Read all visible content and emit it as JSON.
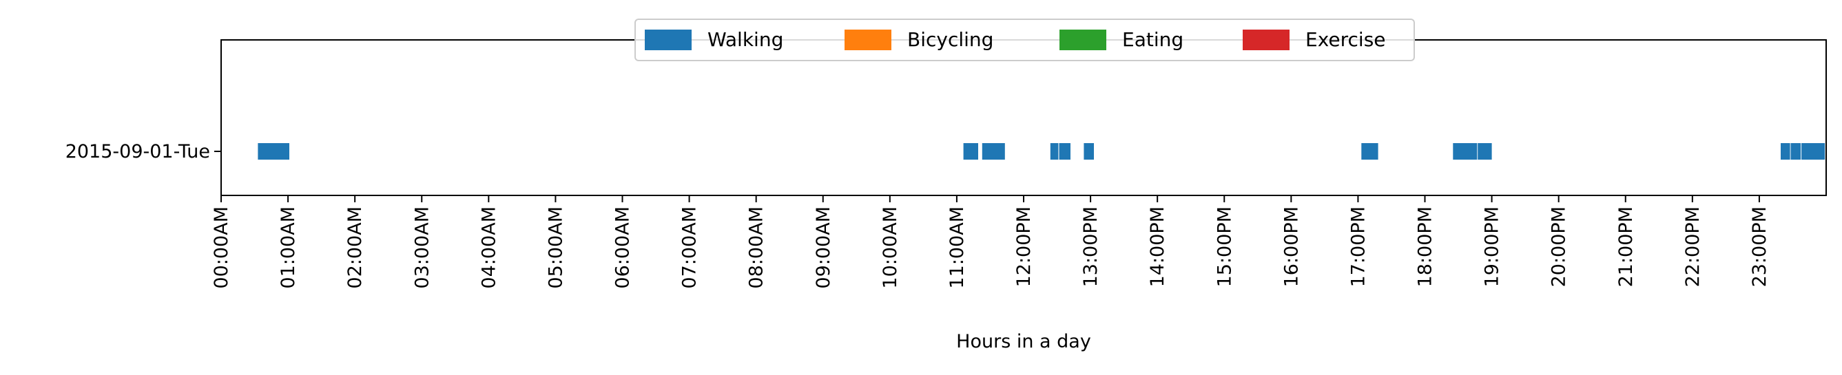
{
  "chart_data": {
    "type": "broken_barh",
    "title": "",
    "xlabel": "Hours in a day",
    "ylabel": "",
    "xlim": [
      0,
      24
    ],
    "x_unit": "hours",
    "grid": false,
    "legend_placement": "top-center",
    "categories": [
      "2015-09-01-Tue"
    ],
    "x_ticks": [
      {
        "value": 0,
        "label": "00:00AM"
      },
      {
        "value": 1,
        "label": "01:00AM"
      },
      {
        "value": 2,
        "label": "02:00AM"
      },
      {
        "value": 3,
        "label": "03:00AM"
      },
      {
        "value": 4,
        "label": "04:00AM"
      },
      {
        "value": 5,
        "label": "05:00AM"
      },
      {
        "value": 6,
        "label": "06:00AM"
      },
      {
        "value": 7,
        "label": "07:00AM"
      },
      {
        "value": 8,
        "label": "08:00AM"
      },
      {
        "value": 9,
        "label": "09:00AM"
      },
      {
        "value": 10,
        "label": "10:00AM"
      },
      {
        "value": 11,
        "label": "11:00AM"
      },
      {
        "value": 12,
        "label": "12:00PM"
      },
      {
        "value": 13,
        "label": "13:00PM"
      },
      {
        "value": 14,
        "label": "14:00PM"
      },
      {
        "value": 15,
        "label": "15:00PM"
      },
      {
        "value": 16,
        "label": "16:00PM"
      },
      {
        "value": 17,
        "label": "17:00PM"
      },
      {
        "value": 18,
        "label": "18:00PM"
      },
      {
        "value": 19,
        "label": "19:00PM"
      },
      {
        "value": 20,
        "label": "20:00PM"
      },
      {
        "value": 21,
        "label": "21:00PM"
      },
      {
        "value": 22,
        "label": "22:00PM"
      },
      {
        "value": 23,
        "label": "23:00PM"
      }
    ],
    "series": [
      {
        "name": "Walking",
        "color": "#1f77b4",
        "intervals": [
          {
            "category": "2015-09-01-Tue",
            "start": 0.55,
            "end": 1.02
          },
          {
            "category": "2015-09-01-Tue",
            "start": 11.1,
            "end": 11.32
          },
          {
            "category": "2015-09-01-Tue",
            "start": 11.38,
            "end": 11.72
          },
          {
            "category": "2015-09-01-Tue",
            "start": 12.4,
            "end": 12.52
          },
          {
            "category": "2015-09-01-Tue",
            "start": 12.53,
            "end": 12.7
          },
          {
            "category": "2015-09-01-Tue",
            "start": 12.9,
            "end": 13.05
          },
          {
            "category": "2015-09-01-Tue",
            "start": 17.05,
            "end": 17.3
          },
          {
            "category": "2015-09-01-Tue",
            "start": 18.42,
            "end": 18.78
          },
          {
            "category": "2015-09-01-Tue",
            "start": 18.79,
            "end": 19.0
          },
          {
            "category": "2015-09-01-Tue",
            "start": 23.32,
            "end": 23.46
          },
          {
            "category": "2015-09-01-Tue",
            "start": 23.47,
            "end": 23.62
          },
          {
            "category": "2015-09-01-Tue",
            "start": 23.63,
            "end": 23.98
          }
        ]
      },
      {
        "name": "Bicycling",
        "color": "#ff7f0e",
        "intervals": []
      },
      {
        "name": "Eating",
        "color": "#2ca02c",
        "intervals": []
      },
      {
        "name": "Exercise",
        "color": "#d62728",
        "intervals": []
      }
    ]
  }
}
